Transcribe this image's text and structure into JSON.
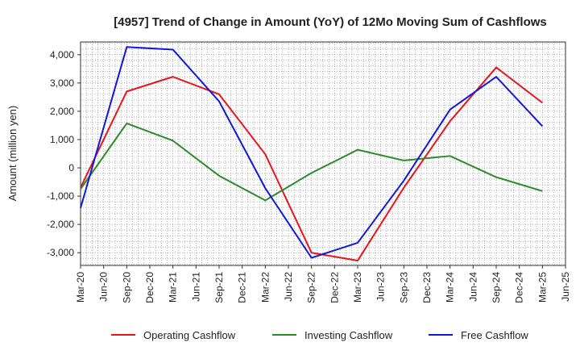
{
  "chart_data": {
    "type": "line",
    "title": "[4957]  Trend of Change in Amount (YoY) of 12Mo Moving Sum of Cashflows",
    "xlabel": "",
    "ylabel": "Amount (million yen)",
    "ylim": [
      -3450,
      4450
    ],
    "yticks": [
      -3000,
      -2000,
      -1000,
      0,
      1000,
      2000,
      3000,
      4000
    ],
    "ytick_labels": [
      "-3,000",
      "-2,000",
      "-1,000",
      "0",
      "1,000",
      "2,000",
      "3,000",
      "4,000"
    ],
    "categories": [
      "Mar-20",
      "Jun-20",
      "Sep-20",
      "Dec-20",
      "Mar-21",
      "Jun-21",
      "Sep-21",
      "Dec-21",
      "Mar-22",
      "Jun-22",
      "Sep-22",
      "Dec-22",
      "Mar-23",
      "Jun-23",
      "Sep-23",
      "Dec-23",
      "Mar-24",
      "Jun-24",
      "Sep-24",
      "Dec-24",
      "Mar-25",
      "Jun-25"
    ],
    "series": [
      {
        "name": "Operating Cashflow",
        "color": "#e8141c",
        "values": [
          -700,
          null,
          2700,
          null,
          3220,
          null,
          2600,
          null,
          480,
          null,
          -3000,
          null,
          -3280,
          null,
          -700,
          null,
          1650,
          null,
          3550,
          null,
          2300,
          null
        ]
      },
      {
        "name": "Investing Cashflow",
        "color": "#2a8a2a",
        "values": [
          -750,
          null,
          1570,
          null,
          960,
          null,
          -280,
          null,
          -1150,
          null,
          -180,
          null,
          640,
          null,
          260,
          null,
          420,
          null,
          -330,
          null,
          -820,
          null
        ]
      },
      {
        "name": "Free Cashflow",
        "color": "#1018d8",
        "values": [
          -1420,
          null,
          4270,
          null,
          4180,
          null,
          2350,
          null,
          -720,
          null,
          -3180,
          null,
          -2650,
          null,
          -450,
          null,
          2060,
          null,
          3220,
          null,
          1470,
          null
        ]
      }
    ],
    "grid": true,
    "legend_position": "bottom"
  }
}
